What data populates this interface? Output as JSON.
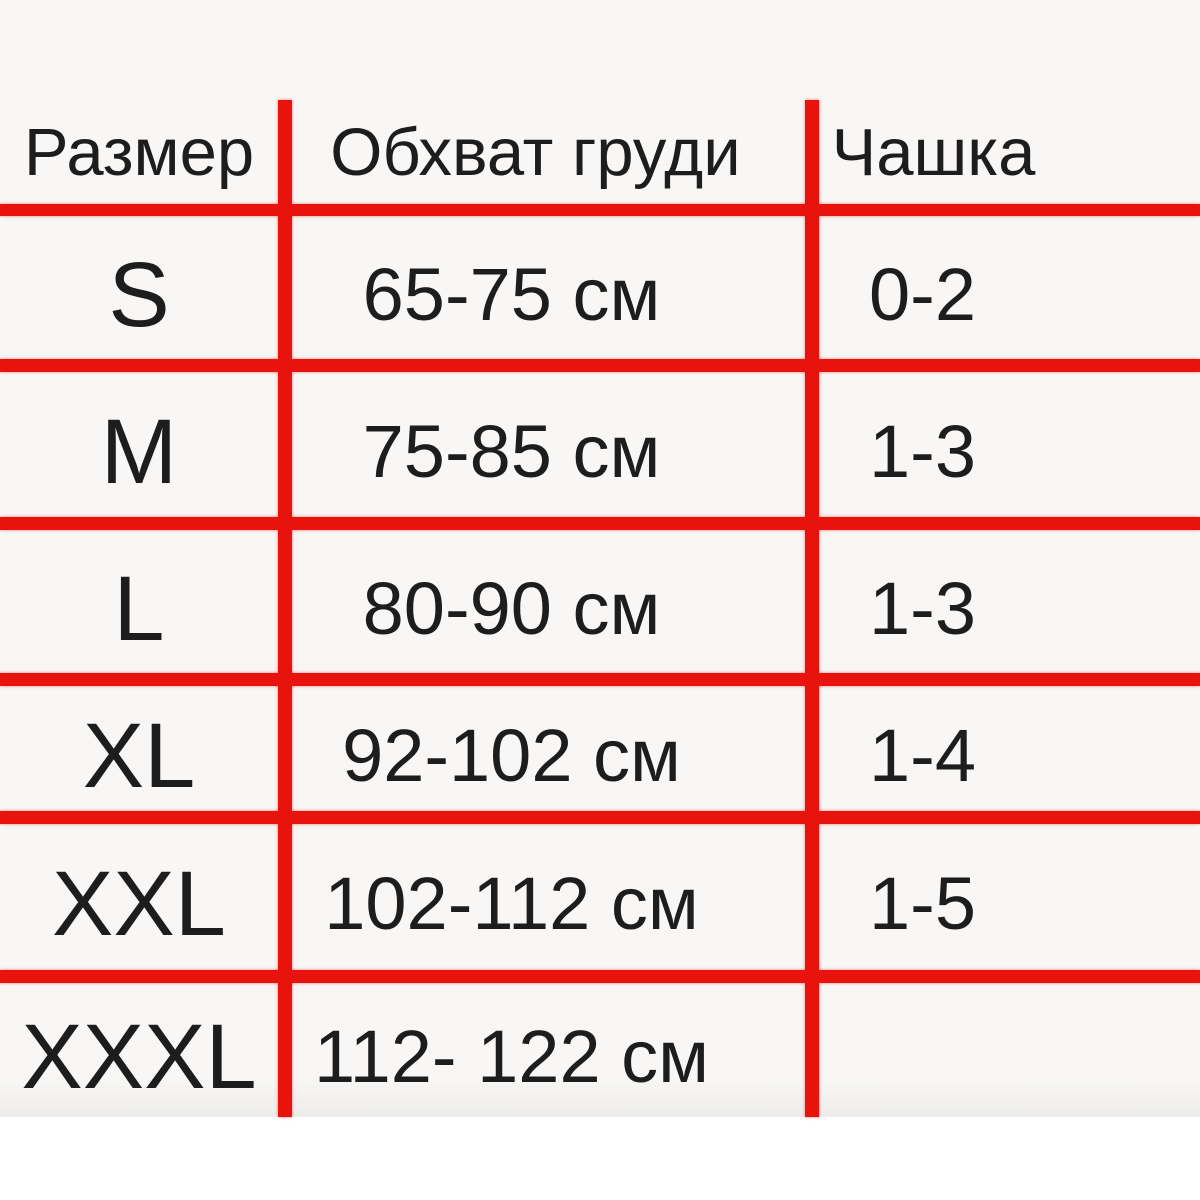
{
  "chart_data": {
    "type": "table",
    "title": "",
    "columns": [
      "Размер",
      "Обхват груди",
      "Чашка"
    ],
    "rows": [
      [
        "S",
        "65-75 см",
        "0-2"
      ],
      [
        "M",
        "75-85 см",
        "1-3"
      ],
      [
        "L",
        "80-90 см",
        "1-3"
      ],
      [
        "XL",
        "92-102 см",
        "1-4"
      ],
      [
        "XXL",
        "102-112 см",
        "1-5"
      ],
      [
        "XXXL",
        "112- 122 см",
        ""
      ]
    ],
    "layout_hints": {
      "grid_line_color": "#e8130d",
      "text_color": "#1d1d1d",
      "cell_background": "#f8f7f5",
      "outer_borders": "none",
      "last_row_bottom_border": "none",
      "last_row_cup_cell": "empty"
    }
  }
}
